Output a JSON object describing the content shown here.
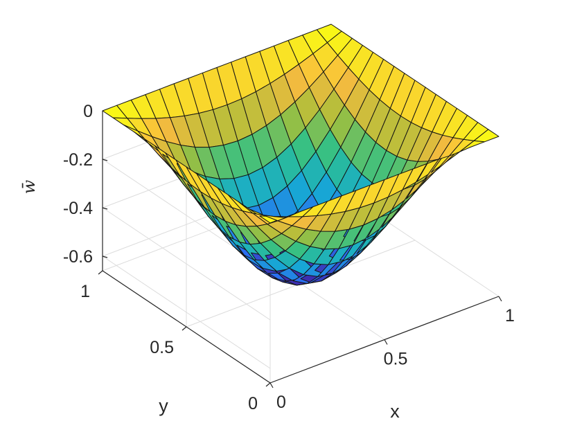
{
  "chart_data": {
    "type": "surface",
    "title": "",
    "xlabel": "x",
    "ylabel": "y",
    "zlabel": "w̄",
    "xlim": [
      0,
      1
    ],
    "ylim": [
      0,
      1
    ],
    "zlim": [
      -0.66,
      0
    ],
    "x_ticks": [
      {
        "value": 0,
        "label": "0"
      },
      {
        "value": 0.5,
        "label": "0.5"
      },
      {
        "value": 1,
        "label": "1"
      }
    ],
    "y_ticks": [
      {
        "value": 0,
        "label": "0"
      },
      {
        "value": 0.5,
        "label": "0.5"
      },
      {
        "value": 1,
        "label": "1"
      }
    ],
    "z_ticks": [
      {
        "value": 0,
        "label": "0"
      },
      {
        "value": -0.2,
        "label": "-0.2"
      },
      {
        "value": -0.4,
        "label": "-0.4"
      },
      {
        "value": -0.6,
        "label": "-0.6"
      }
    ],
    "grid": true,
    "colormap": [
      "#3e26a8",
      "#2a6ff0",
      "#17a9d4",
      "#2ec08a",
      "#a6bf3a",
      "#f9bb3f",
      "#f9fb15"
    ],
    "mesh_divisions": 16,
    "surface": "w(x,y) = -0.64 * sin(pi*x) * sin(pi*y)",
    "min_value": -0.64
  }
}
